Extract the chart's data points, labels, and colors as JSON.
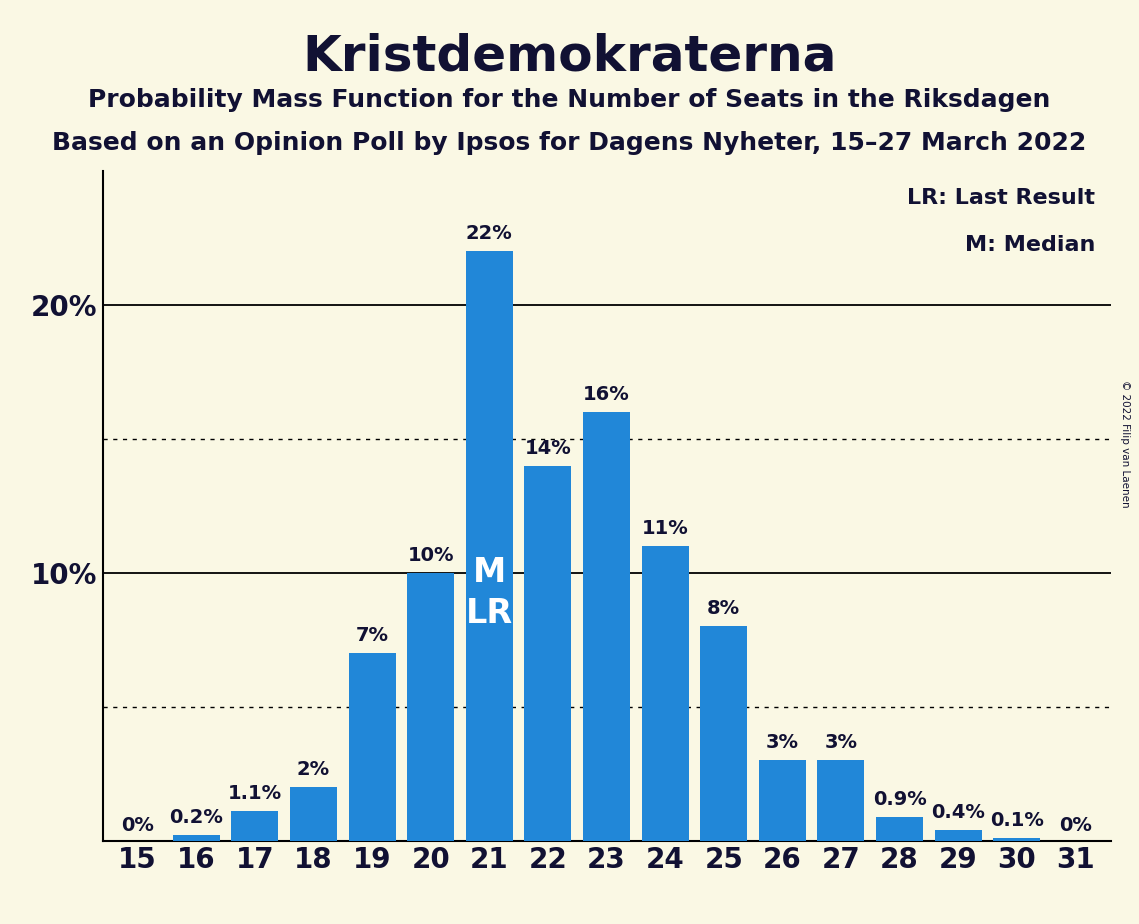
{
  "title": "Kristdemokraterna",
  "subtitle1": "Probability Mass Function for the Number of Seats in the Riksdagen",
  "subtitle2": "Based on an Opinion Poll by Ipsos for Dagens Nyheter, 15–27 March 2022",
  "copyright": "© 2022 Filip van Laenen",
  "categories": [
    15,
    16,
    17,
    18,
    19,
    20,
    21,
    22,
    23,
    24,
    25,
    26,
    27,
    28,
    29,
    30,
    31
  ],
  "values": [
    0.0,
    0.2,
    1.1,
    2.0,
    7.0,
    10.0,
    22.0,
    14.0,
    16.0,
    11.0,
    8.0,
    3.0,
    3.0,
    0.9,
    0.4,
    0.1,
    0.0
  ],
  "labels": [
    "0%",
    "0.2%",
    "1.1%",
    "2%",
    "7%",
    "10%",
    "22%",
    "14%",
    "16%",
    "11%",
    "8%",
    "3%",
    "3%",
    "0.9%",
    "0.4%",
    "0.1%",
    "0%"
  ],
  "bar_color": "#2187d8",
  "background_color": "#faf8e4",
  "text_color": "#111133",
  "ml_bar_seat": 21,
  "legend_lr": "LR: Last Result",
  "legend_m": "M: Median",
  "ylim": [
    0,
    25
  ],
  "solid_hlines": [
    10,
    20
  ],
  "dotted_hlines": [
    5,
    15
  ],
  "title_fontsize": 36,
  "subtitle_fontsize": 18,
  "label_fontsize": 14,
  "tick_fontsize": 20
}
